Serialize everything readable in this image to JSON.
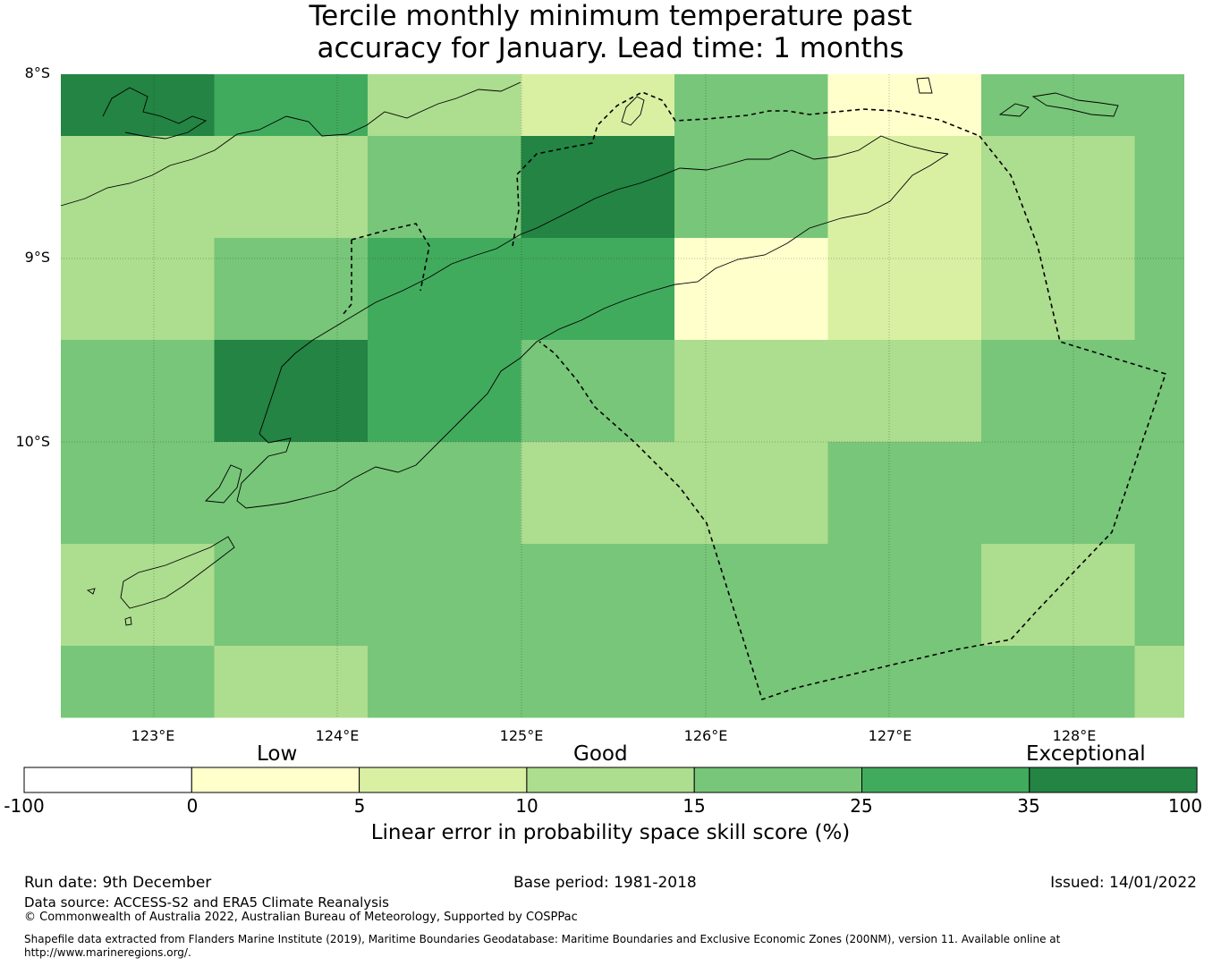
{
  "title_line1": "Tercile monthly minimum temperature past",
  "title_line2": "accuracy for January. Lead time: 1 months",
  "map": {
    "lat_labels": [
      "8°S",
      "9°S",
      "10°S"
    ],
    "lon_labels": [
      "123°E",
      "124°E",
      "125°E",
      "126°E",
      "127°E",
      "128°E"
    ],
    "palette": [
      "#ffffcc",
      "#d9f0a3",
      "#addd8e",
      "#78c679",
      "#41ab5d",
      "#238443"
    ],
    "grid_skill_bins": [
      [
        5,
        4,
        2,
        1,
        3,
        0,
        3
      ],
      [
        2,
        2,
        3,
        5,
        3,
        1,
        2
      ],
      [
        2,
        3,
        4,
        4,
        0,
        1,
        2
      ],
      [
        3,
        5,
        4,
        3,
        2,
        2,
        3
      ],
      [
        3,
        3,
        3,
        2,
        2,
        3,
        3
      ],
      [
        2,
        3,
        3,
        3,
        3,
        3,
        2
      ],
      [
        3,
        2,
        3,
        3,
        3,
        3,
        3
      ]
    ],
    "edge_column_bins": [
      3,
      3,
      3,
      3,
      3,
      3,
      2
    ]
  },
  "colorbar": {
    "categories": [
      "Low",
      "Good",
      "Exceptional"
    ],
    "ticks": [
      "-100",
      "0",
      "5",
      "10",
      "15",
      "25",
      "35",
      "100"
    ],
    "colors": [
      "#ffffff",
      "#ffffcc",
      "#d9f0a3",
      "#addd8e",
      "#78c679",
      "#41ab5d",
      "#238443"
    ],
    "label": "Linear error in probability space skill score (%)"
  },
  "footer": {
    "run_date": "Run date: 9th December",
    "base_period": "Base period: 1981-2018",
    "issued": "Issued: 14/01/2022",
    "data_source": "Data source: ACCESS-S2 and ERA5 Climate Reanalysis",
    "copyright": "© Commonwealth of Australia 2022, Australian Bureau of Meteorology, Supported by COSPPac",
    "shapefile_line1": "Shapefile data extracted from Flanders Marine Institute (2019), Maritime Boundaries Geodatabase: Maritime Boundaries and Exclusive Economic Zones (200NM), version 11. Available online at",
    "shapefile_line2": "http://www.marineregions.org/."
  }
}
